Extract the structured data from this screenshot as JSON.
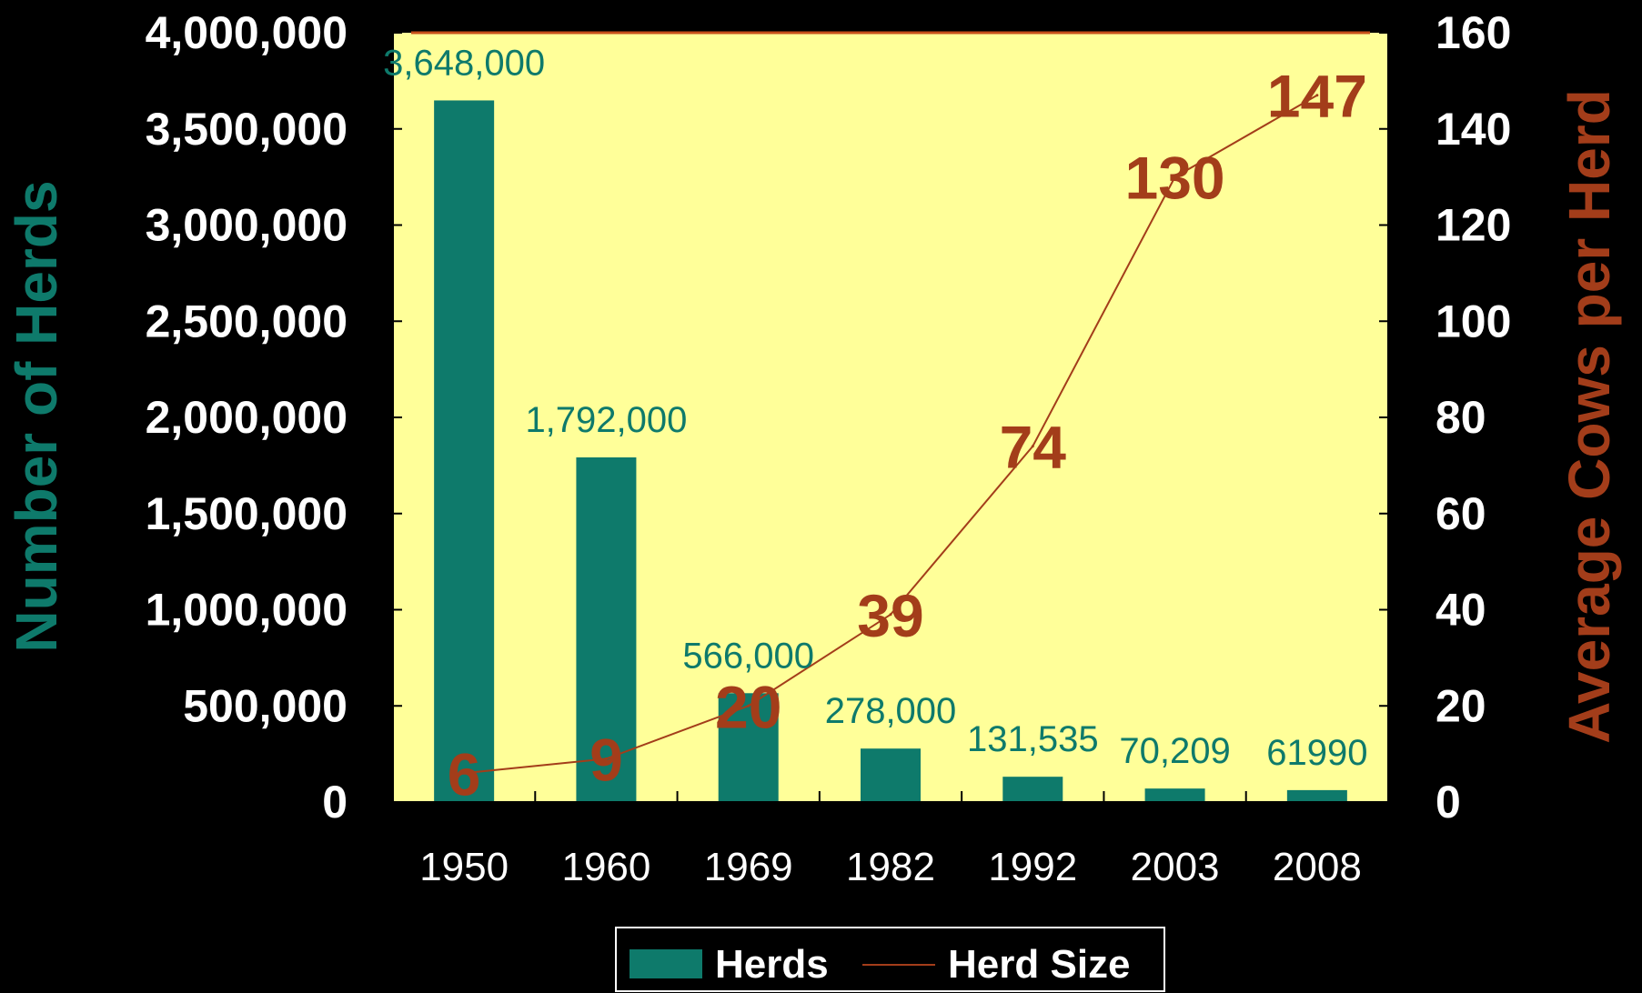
{
  "chart_data": {
    "type": "bar",
    "categories": [
      "1950",
      "1960",
      "1969",
      "1982",
      "1992",
      "2003",
      "2008"
    ],
    "series": [
      {
        "name": "Herds",
        "type": "bar",
        "axis": "left",
        "values": [
          3648000,
          1792000,
          566000,
          278000,
          131535,
          70209,
          61990
        ],
        "labels": [
          "3,648,000",
          "1,792,000",
          "566,000",
          "278,000",
          "131,535",
          "70,209",
          "61990"
        ]
      },
      {
        "name": "Herd Size",
        "type": "line",
        "axis": "right",
        "values": [
          6,
          9,
          20,
          39,
          74,
          130,
          147
        ],
        "labels": [
          "6",
          "9",
          "20",
          "39",
          "74",
          "130",
          "147"
        ]
      }
    ],
    "y_left": {
      "label": "Number of Herds",
      "range": [
        0,
        4000000
      ],
      "ticks": [
        "0",
        "500,000",
        "1,000,000",
        "1,500,000",
        "2,000,000",
        "2,500,000",
        "3,000,000",
        "3,500,000",
        "4,000,000"
      ]
    },
    "y_right": {
      "label": "Average Cows per Herd",
      "range": [
        0,
        160
      ],
      "ticks": [
        "0",
        "20",
        "40",
        "60",
        "80",
        "100",
        "120",
        "140",
        "160"
      ]
    },
    "legend": {
      "placement": "bottom-center",
      "items": [
        "Herds",
        "Herd Size"
      ]
    },
    "grid": false,
    "colors": {
      "background": "#000000",
      "plot_area": "#ffff99",
      "bar": "#0e7a6b",
      "line": "#a33d1a",
      "tick_text": "#ffffff"
    }
  }
}
